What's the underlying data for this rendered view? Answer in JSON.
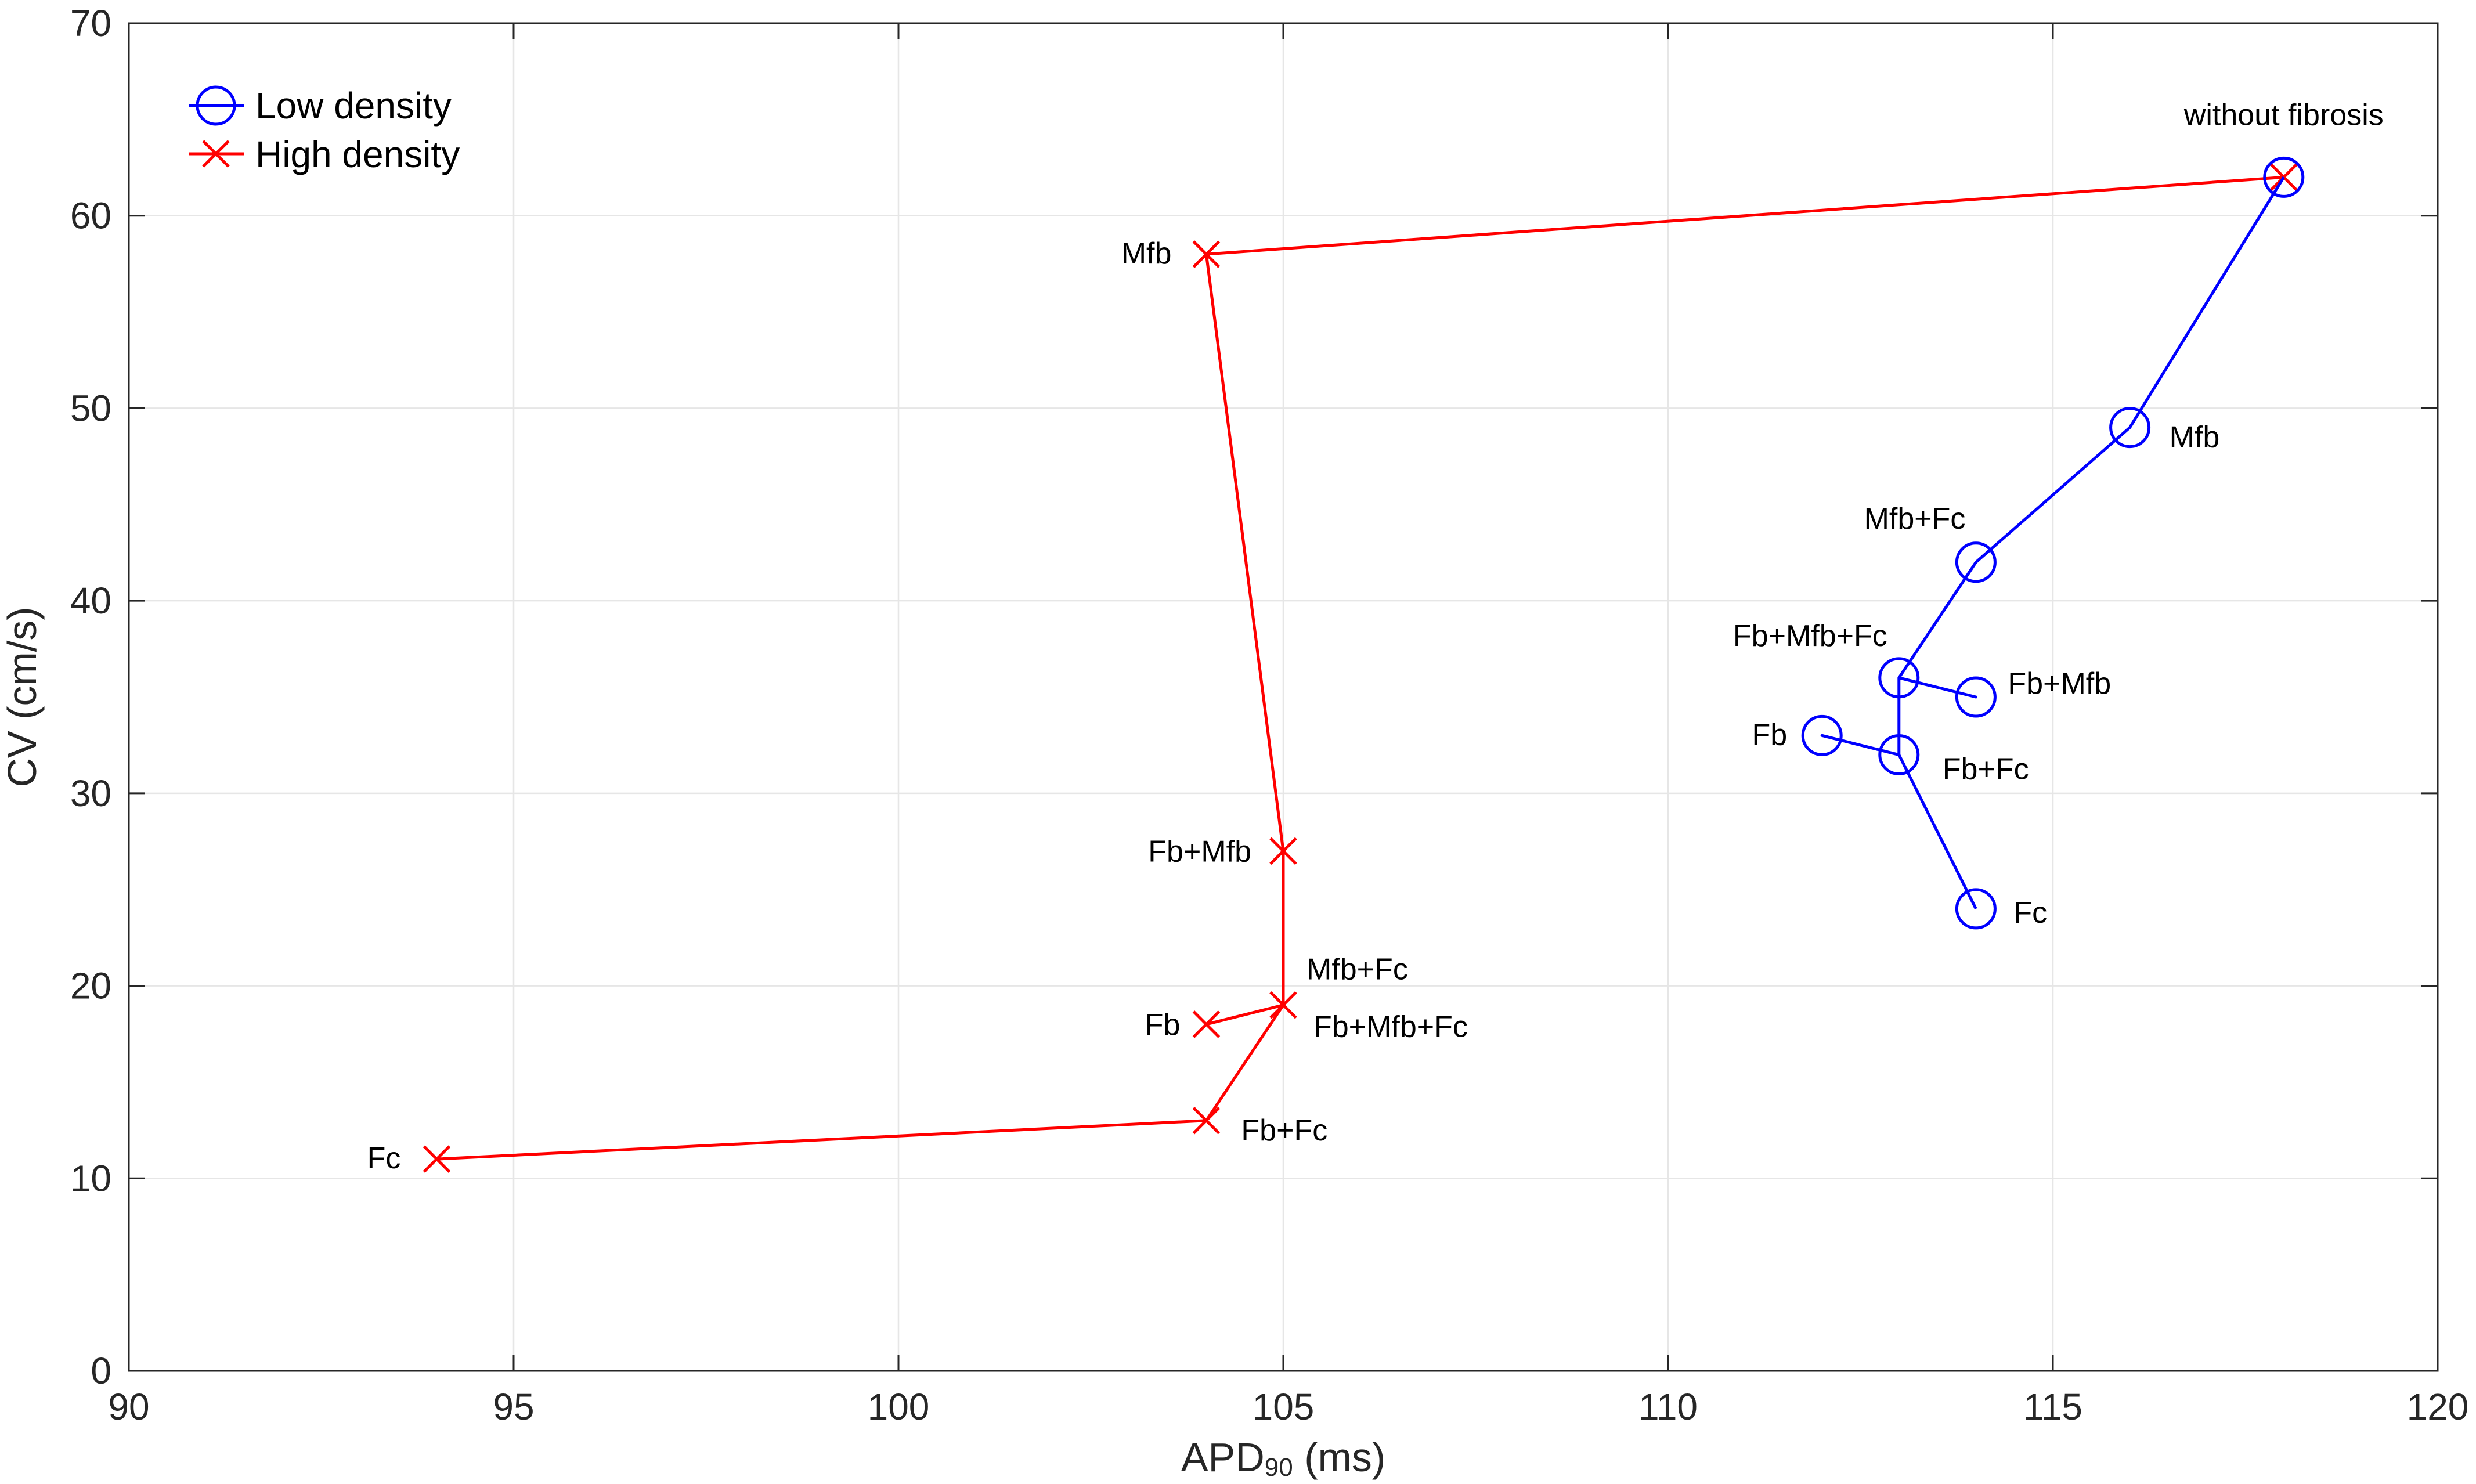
{
  "chart_data": {
    "type": "line",
    "xlabel": "APD90 (ms)",
    "xlabel_main": "APD",
    "xlabel_sub": "90",
    "xlabel_unit": " (ms)",
    "ylabel": "CV (cm/s)",
    "xlim": [
      90,
      120
    ],
    "ylim": [
      0,
      70
    ],
    "xticks": [
      90,
      95,
      100,
      105,
      110,
      115,
      120
    ],
    "yticks": [
      0,
      10,
      20,
      30,
      40,
      50,
      60,
      70
    ],
    "grid": true,
    "legend_placement": "top-left",
    "series": [
      {
        "name": "Low density",
        "color": "#0000ff",
        "marker": "circle",
        "points": [
          {
            "x": 118,
            "y": 62,
            "label": "without fibrosis"
          },
          {
            "x": 116,
            "y": 49,
            "label": "Mfb"
          },
          {
            "x": 114,
            "y": 42,
            "label": "Mfb+Fc"
          },
          {
            "x": 113,
            "y": 36,
            "label": "Fb+Mfb+Fc"
          },
          {
            "x": 114,
            "y": 35,
            "label": "Fb+Mfb"
          },
          {
            "x": 113,
            "y": 36,
            "label": ""
          },
          {
            "x": 113,
            "y": 32,
            "label": "Fb+Fc"
          },
          {
            "x": 112,
            "y": 33,
            "label": "Fb"
          },
          {
            "x": 113,
            "y": 32,
            "label": ""
          },
          {
            "x": 114,
            "y": 24,
            "label": "Fc"
          }
        ]
      },
      {
        "name": "High density",
        "color": "#ff0000",
        "marker": "x",
        "points": [
          {
            "x": 118,
            "y": 62,
            "label": ""
          },
          {
            "x": 104,
            "y": 58,
            "label": "Mfb"
          },
          {
            "x": 105,
            "y": 27,
            "label": "Fb+Mfb"
          },
          {
            "x": 105,
            "y": 19,
            "label": "Mfb+Fc"
          },
          {
            "x": 104,
            "y": 18,
            "label": "Fb"
          },
          {
            "x": 105,
            "y": 19,
            "label": "Fb+Mfb+Fc"
          },
          {
            "x": 104,
            "y": 13,
            "label": "Fb+Fc"
          },
          {
            "x": 94,
            "y": 11,
            "label": "Fc"
          }
        ]
      }
    ]
  }
}
